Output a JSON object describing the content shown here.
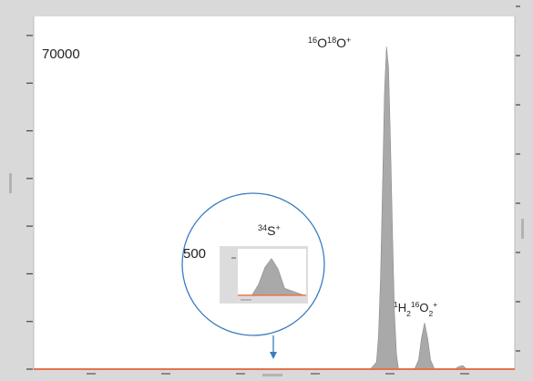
{
  "chart_data": {
    "type": "area",
    "title": "",
    "xlabel": "",
    "ylabel": "",
    "y_max_label": "70000",
    "grid": false,
    "main_series": {
      "name": "",
      "color": "#a9a9a9",
      "x": [
        0.0,
        0.84,
        0.855,
        0.86,
        0.865,
        0.87,
        0.875,
        0.88,
        0.885,
        0.89,
        0.895,
        0.9,
        0.905,
        0.91,
        0.95,
        0.96,
        0.967,
        0.975,
        0.983,
        0.99,
        1.0,
        1.05,
        1.06,
        1.07,
        1.08,
        1.2
      ],
      "y": [
        0,
        0,
        1400,
        6500,
        18000,
        36000,
        55000,
        64000,
        60000,
        45000,
        27000,
        11000,
        3000,
        0,
        0,
        1800,
        6000,
        9200,
        6000,
        1800,
        0,
        0,
        500,
        700,
        0,
        0
      ]
    },
    "inset": {
      "scale_label": "500",
      "series": {
        "name": "",
        "color": "#a9a9a9",
        "x": [
          0.0,
          0.2,
          0.3,
          0.4,
          0.5,
          0.6,
          0.7,
          1.0
        ],
        "y": [
          0,
          0,
          120,
          320,
          420,
          300,
          80,
          0
        ]
      }
    },
    "annotations": [
      {
        "id": "o16o18",
        "segments": [
          {
            "text": "16",
            "sup": true
          },
          {
            "text": "O"
          },
          {
            "text": "18",
            "sup": true
          },
          {
            "text": "O"
          },
          {
            "text": "+",
            "sup": true
          }
        ]
      },
      {
        "id": "h2o2",
        "segments": [
          {
            "text": "1",
            "sup": true
          },
          {
            "text": "H"
          },
          {
            "text": "2",
            "sub": true
          },
          {
            "text": "16",
            "sup": true
          },
          {
            "text": "O"
          },
          {
            "text": "2",
            "sub": true
          },
          {
            "text": "+",
            "sup": true
          }
        ]
      },
      {
        "id": "s34",
        "segments": [
          {
            "text": "34",
            "sup": true
          },
          {
            "text": "S"
          },
          {
            "text": "+",
            "sup": true
          }
        ]
      }
    ],
    "colors": {
      "baseline": "#e8704c",
      "magnifier": "#3a7cc0",
      "frame": "#d9d9d9",
      "plot_bg": "#ffffff"
    }
  }
}
